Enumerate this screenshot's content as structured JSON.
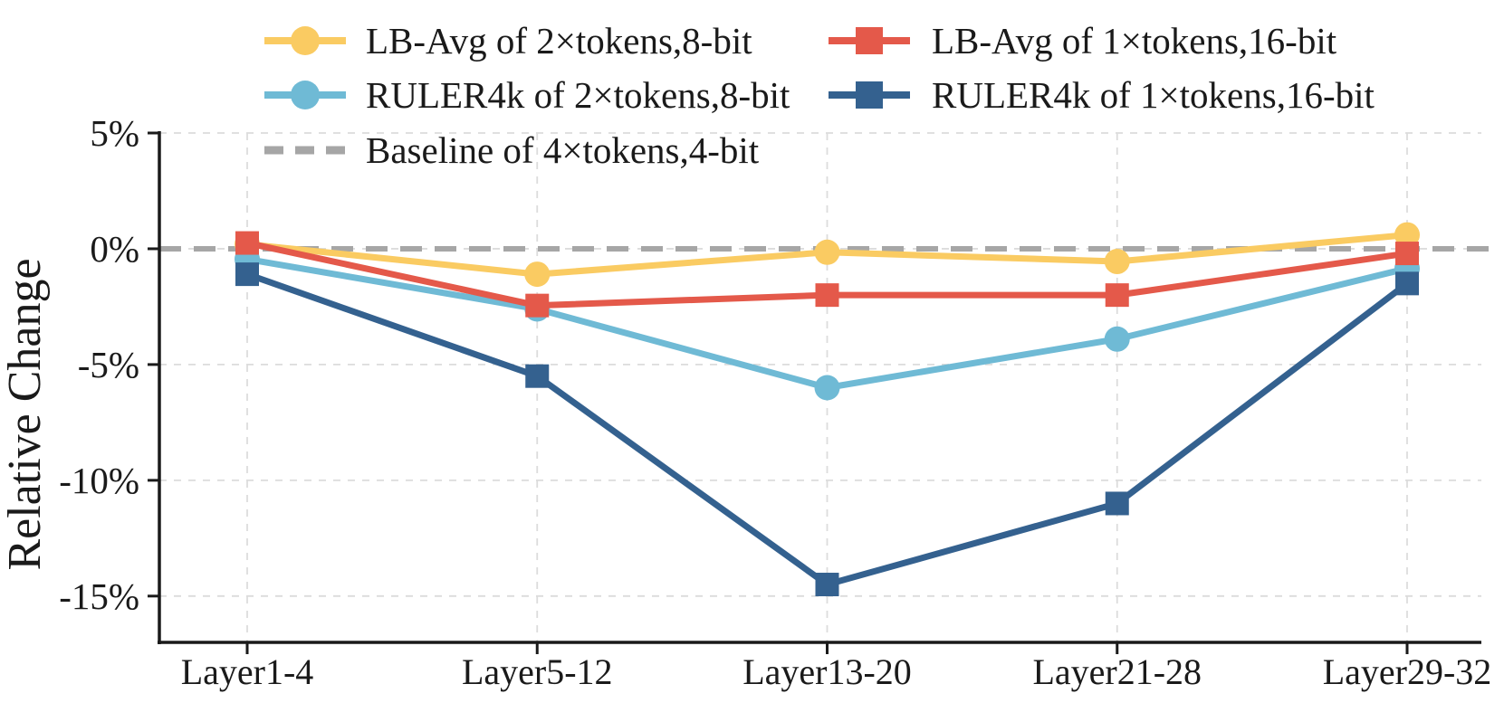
{
  "chart_data": {
    "type": "line",
    "categories": [
      "Layer1-4",
      "Layer5-12",
      "Layer13-20",
      "Layer21-28",
      "Layer29-32"
    ],
    "series": [
      {
        "name": "LB-Avg of 2×tokens,8-bit",
        "color": "#FACB62",
        "marker": "circle",
        "values": [
          0.2,
          -1.1,
          -0.15,
          -0.55,
          0.6
        ]
      },
      {
        "name": "LB-Avg of 1×tokens,16-bit",
        "color": "#E4594A",
        "marker": "square",
        "values": [
          0.25,
          -2.45,
          -2.0,
          -2.0,
          -0.2
        ]
      },
      {
        "name": "RULER4k of 2×tokens,8-bit",
        "color": "#6FBAD5",
        "marker": "circle",
        "values": [
          -0.45,
          -2.6,
          -6.0,
          -3.9,
          -0.85
        ]
      },
      {
        "name": "RULER4k of 1×tokens,16-bit",
        "color": "#34618F",
        "marker": "square",
        "values": [
          -1.1,
          -5.5,
          -14.5,
          -11.0,
          -1.5
        ]
      }
    ],
    "baseline": {
      "name": "Baseline of 4×tokens,4-bit",
      "color": "#A6A6A6",
      "value": 0
    },
    "ylabel": "Relative Change",
    "yticks": [
      5,
      0,
      -5,
      -10,
      -15
    ],
    "ytick_labels": [
      "5%",
      "0%",
      "-5%",
      "-10%",
      "-15%"
    ],
    "ylim": [
      -17,
      5
    ],
    "grid": true,
    "grid_color": "#DCDCDC",
    "axis_color": "#1a1a1a",
    "legend_position": "top",
    "draw_order": [
      0,
      2,
      1,
      3
    ]
  }
}
